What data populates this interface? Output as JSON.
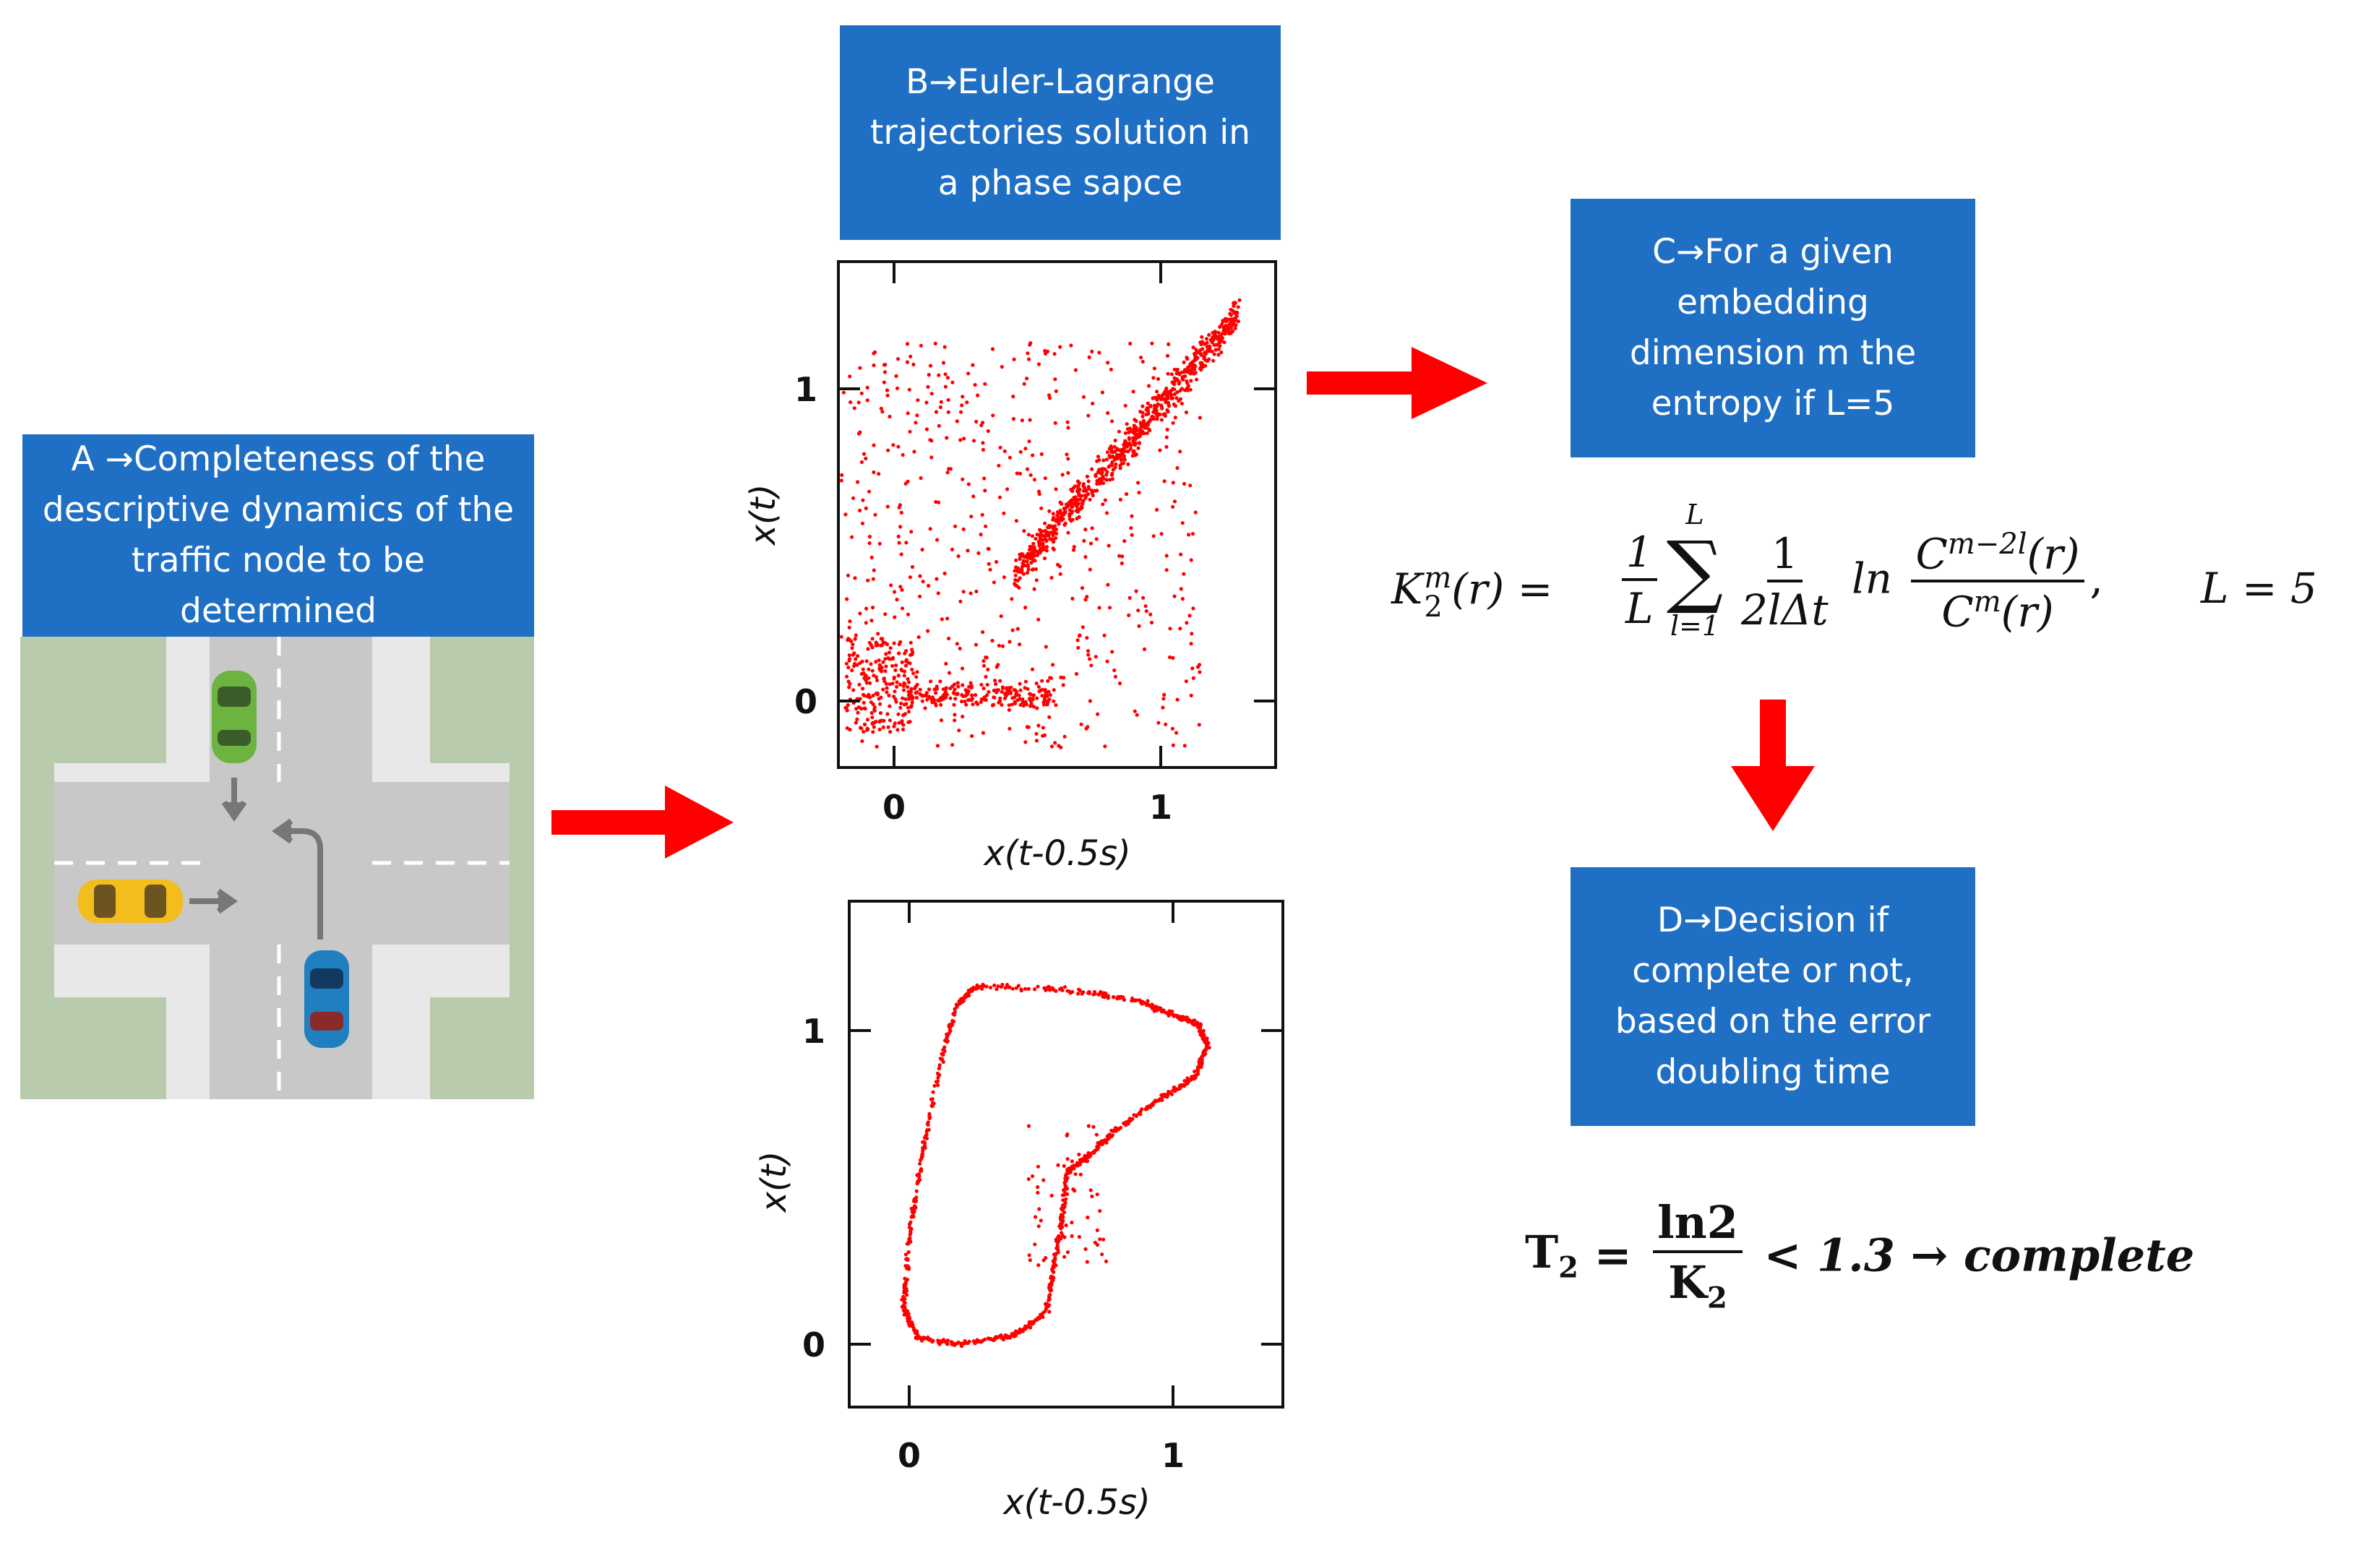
{
  "boxes": {
    "a": {
      "lines": [
        "A →Completeness of the",
        "descriptive dynamics of the",
        "traffic node to be",
        "determined"
      ]
    },
    "b": {
      "lines": [
        "B→Euler-Lagrange",
        "trajectories solution in",
        "a phase sapce"
      ]
    },
    "c": {
      "lines": [
        "C→For a given",
        "embedding",
        "dimension m the",
        "entropy if L=5"
      ]
    },
    "d": {
      "lines": [
        "D→Decision if",
        "complete or not,",
        "based on the error",
        "doubling time"
      ]
    }
  },
  "plots": {
    "top": {
      "xlabel": "x(t-0.5s)",
      "ylabel": "x(t)",
      "xticks": [
        "0",
        "1"
      ],
      "yticks": [
        "0",
        "1"
      ]
    },
    "bottom": {
      "xlabel": "x(t-0.5s)",
      "ylabel": "x(t)",
      "xticks": [
        "0",
        "1"
      ],
      "yticks": [
        "0",
        "1"
      ]
    }
  },
  "equations": {
    "entropy": {
      "lhs": "K",
      "lhs_sup": "m",
      "lhs_sub": "2",
      "lhs_arg": "(r) =",
      "frac1_num": "1",
      "frac1_den": "L",
      "sum_top": "L",
      "sum_symbol": "∑",
      "sum_bottom": "l=1",
      "frac2_num": "1",
      "frac2_den": "2lΔt",
      "ln": "ln",
      "frac3_num_base": "C",
      "frac3_num_sup": "m−2l",
      "frac3_num_arg": "(r)",
      "frac3_den_base": "C",
      "frac3_den_sup": "m",
      "frac3_den_arg": "(r)",
      "comma": ",",
      "L_eq": "L = 5"
    },
    "doubling": {
      "lhs": "T",
      "lhs_sub": "2",
      "eq": "=",
      "num": "ln2",
      "den_base": "K",
      "den_sub": "2",
      "rhs": "< 1.3 → complete"
    }
  },
  "colors": {
    "box": "#1f6fc5",
    "arrow": "#ff0000",
    "points": "#ff0000",
    "road": "#c8c8c8",
    "grass": "#b8ccad",
    "sidewalk": "#e8e8e8"
  }
}
